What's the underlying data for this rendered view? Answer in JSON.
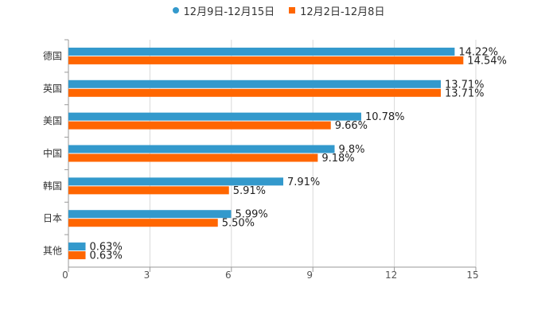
{
  "chart_data": {
    "type": "bar",
    "orientation": "horizontal",
    "categories": [
      "德国",
      "英国",
      "美国",
      "中国",
      "韩国",
      "日本",
      "其他"
    ],
    "series": [
      {
        "name": "12月9日-12月15日",
        "color": "#3399cc",
        "values": [
          14.22,
          13.71,
          10.78,
          9.8,
          7.91,
          5.99,
          0.63
        ],
        "labels": [
          "14.22%",
          "13.71%",
          "10.78%",
          "9.8%",
          "7.91%",
          "5.99%",
          "0.63%"
        ]
      },
      {
        "name": "12月2日-12月8日",
        "color": "#ff6600",
        "values": [
          14.54,
          13.71,
          9.66,
          9.18,
          5.91,
          5.5,
          0.63
        ],
        "labels": [
          "14.54%",
          "13.71%",
          "9.66%",
          "9.18%",
          "5.91%",
          "5.50%",
          "0.63%"
        ]
      }
    ],
    "xlim": [
      0,
      15
    ],
    "xticks": [
      "0",
      "3",
      "6",
      "9",
      "12",
      "15"
    ],
    "grid": true,
    "legend": "top-center"
  }
}
